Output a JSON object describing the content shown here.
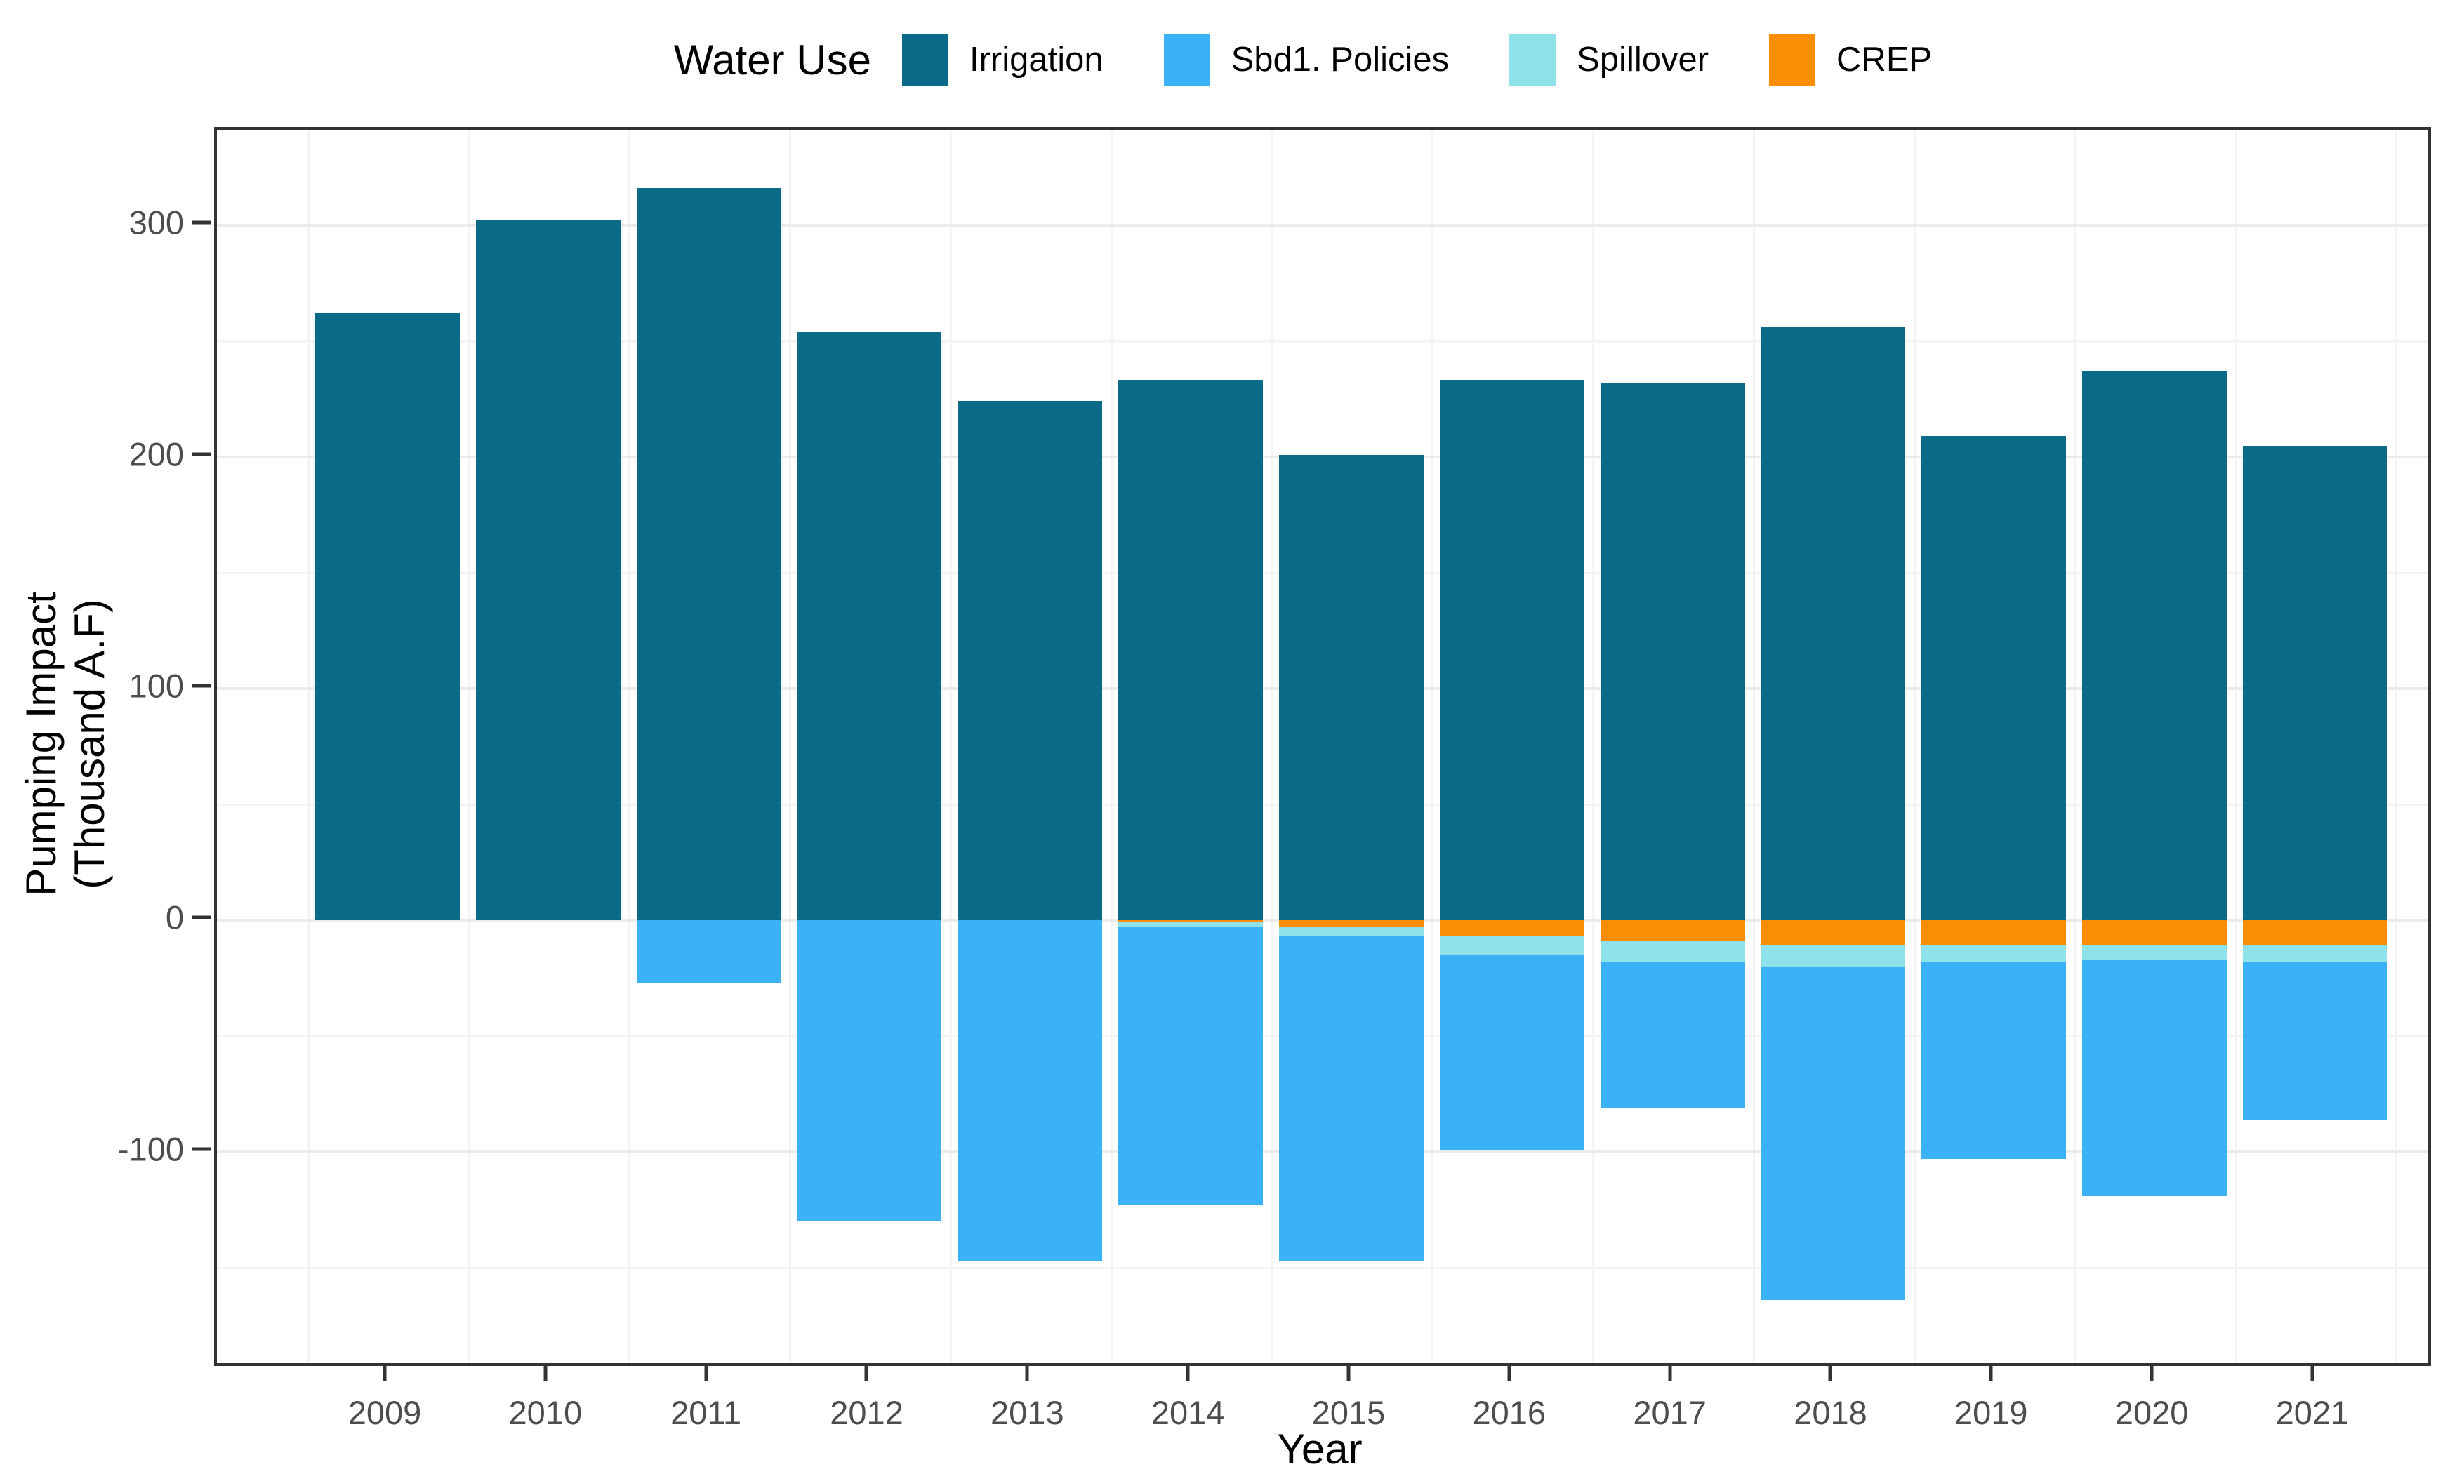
{
  "chart_data": {
    "type": "bar",
    "stacked": true,
    "title": "",
    "xlabel": "Year",
    "ylabel": "Pumping Impact\n(Thousand A.F)",
    "ylabel_line1": "Pumping Impact",
    "ylabel_line2": "(Thousand A.F)",
    "legend_title": "Water Use",
    "legend_position": "top",
    "grid": true,
    "ylim": [
      -191,
      341
    ],
    "y_major_ticks": [
      300,
      200,
      100,
      0,
      -100
    ],
    "y_minor_ticks": [
      250,
      150,
      50,
      -50,
      -150
    ],
    "categories": [
      "2009",
      "2010",
      "2011",
      "2012",
      "2013",
      "2014",
      "2015",
      "2016",
      "2017",
      "2018",
      "2019",
      "2020",
      "2021"
    ],
    "series": [
      {
        "name": "Irrigation",
        "color": "#0B6A88",
        "values": [
          262,
          302,
          316,
          254,
          224,
          233,
          201,
          233,
          232,
          256,
          209,
          237,
          205
        ]
      },
      {
        "name": "Sbd1. Policies",
        "color": "#3BB1F8",
        "values": [
          0,
          0,
          -27,
          -130,
          -147,
          -120,
          -140,
          -84,
          -63,
          -144,
          -85,
          -102,
          -68
        ]
      },
      {
        "name": "Spillover",
        "color": "#8FE2EA",
        "values": [
          0,
          0,
          0,
          0,
          0,
          -2,
          -4,
          -8,
          -9,
          -9,
          -7,
          -6,
          -7
        ]
      },
      {
        "name": "CREP",
        "color": "#FB8D02",
        "values": [
          0,
          0,
          0,
          0,
          0,
          -1,
          -3,
          -7,
          -9,
          -11,
          -11,
          -11,
          -11
        ]
      }
    ],
    "negative_stack_order_from_zero": [
      "CREP",
      "Spillover",
      "Sbd1. Policies"
    ]
  },
  "colors": {
    "grid_major": "#EBEBEB",
    "grid_minor": "#F4F4F4",
    "panel_border": "#333333",
    "tick_text": "#4D4D4D",
    "axis_title_text": "#000000"
  }
}
